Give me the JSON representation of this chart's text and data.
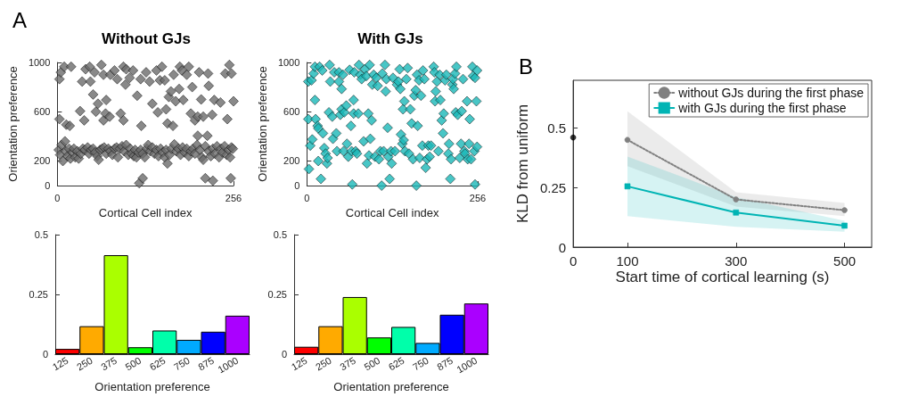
{
  "chart_data": [
    {
      "type": "scatter",
      "title": "Without GJs",
      "xlabel": "Cortical Cell index",
      "ylabel": "Orientation preference",
      "annotations": [
        "A"
      ],
      "color": "#6b6b6b",
      "marker": "diamond",
      "xlim": [
        0,
        256
      ],
      "xticks": [
        0,
        256
      ],
      "ylim": [
        0,
        1000
      ],
      "yticks": [
        0,
        200,
        600,
        1000
      ],
      "x": [
        3,
        5,
        10,
        20,
        3,
        13,
        18,
        33,
        36,
        39,
        41,
        47,
        48,
        54,
        52,
        59,
        56,
        64,
        67,
        71,
        67,
        70,
        76,
        77,
        83,
        87,
        92,
        96,
        96,
        100,
        99,
        105,
        110,
        116,
        121,
        122,
        129,
        134,
        138,
        144,
        146,
        149,
        152,
        156,
        158,
        160,
        162,
        165,
        168,
        169,
        172,
        178,
        177,
        181,
        183,
        188,
        191,
        194,
        196,
        200,
        204,
        206,
        209,
        212,
        219,
        220,
        225,
        228,
        237,
        244,
        247,
        250,
        253,
        256,
        119,
        124,
        215,
        226,
        252,
        2,
        4,
        6,
        8,
        11,
        12,
        15,
        17,
        19,
        22,
        24,
        26,
        29,
        31,
        34,
        37,
        40,
        44,
        46,
        49,
        52,
        55,
        58,
        60,
        62,
        65,
        68,
        71,
        74,
        77,
        80,
        83,
        86,
        88,
        91,
        94,
        97,
        100,
        103,
        106,
        108,
        111,
        113,
        115,
        118,
        121,
        124,
        127,
        130,
        132,
        135,
        138,
        141,
        144,
        147,
        150,
        153,
        156,
        158,
        160,
        163,
        166,
        170,
        173,
        176,
        179,
        182,
        185,
        188,
        191,
        194,
        197,
        200,
        203,
        204,
        207,
        210,
        212,
        215,
        218,
        220,
        223,
        226,
        229,
        232,
        235,
        238,
        240,
        243,
        246,
        249,
        251,
        253,
        255
      ],
      "values": [
        865,
        920,
        965,
        965,
        540,
        495,
        485,
        605,
        845,
        530,
        945,
        965,
        845,
        920,
        740,
        665,
        600,
        980,
        900,
        695,
        530,
        585,
        560,
        900,
        935,
        865,
        585,
        530,
        965,
        945,
        820,
        875,
        935,
        730,
        865,
        485,
        920,
        845,
        665,
        935,
        595,
        855,
        965,
        855,
        620,
        505,
        720,
        765,
        485,
        900,
        685,
        965,
        785,
        935,
        695,
        900,
        965,
        585,
        800,
        530,
        560,
        920,
        700,
        560,
        910,
        810,
        575,
        695,
        675,
        910,
        540,
        980,
        910,
        685,
        20,
        60,
        60,
        40,
        60,
        290,
        250,
        330,
        200,
        360,
        280,
        240,
        300,
        220,
        270,
        300,
        230,
        280,
        220,
        260,
        300,
        290,
        310,
        260,
        290,
        300,
        270,
        240,
        210,
        290,
        300,
        310,
        260,
        300,
        280,
        250,
        300,
        310,
        230,
        300,
        320,
        280,
        330,
        250,
        300,
        260,
        240,
        290,
        230,
        270,
        290,
        260,
        230,
        300,
        330,
        280,
        310,
        260,
        290,
        240,
        300,
        270,
        230,
        290,
        180,
        250,
        300,
        335,
        280,
        300,
        250,
        310,
        270,
        300,
        240,
        280,
        300,
        260,
        330,
        405,
        290,
        230,
        210,
        320,
        405,
        280,
        240,
        300,
        260,
        320,
        230,
        300,
        270,
        320,
        250,
        290,
        230,
        310,
        300
      ]
    },
    {
      "type": "scatter",
      "title": "With GJs",
      "xlabel": "Cortical Cell index",
      "ylabel": "Orientation preference",
      "color": "#1ab8b8",
      "marker": "diamond",
      "xlim": [
        0,
        256
      ],
      "xticks": [
        0,
        256
      ],
      "ylim": [
        0,
        1000
      ],
      "yticks": [
        0,
        200,
        600,
        1000
      ],
      "x": [
        2,
        2,
        3,
        5,
        7,
        8,
        10,
        12,
        12,
        13,
        16,
        17,
        17,
        19,
        21,
        23,
        24,
        26,
        28,
        30,
        31,
        33,
        35,
        34,
        38,
        39,
        44,
        41,
        45,
        48,
        48,
        50,
        52,
        52,
        54,
        56,
        55,
        59,
        60,
        62,
        64,
        66,
        67,
        68,
        70,
        70,
        71,
        73,
        75,
        77,
        78,
        80,
        82,
        85,
        87,
        89,
        90,
        92,
        93,
        94,
        95,
        97,
        98,
        100,
        102,
        104,
        106,
        108,
        110,
        112,
        113,
        115,
        117,
        118,
        119,
        121,
        122,
        124,
        126,
        127,
        129,
        132,
        135,
        137,
        139,
        140,
        141,
        143,
        144,
        146,
        145,
        147,
        149,
        151,
        153,
        155,
        157,
        159,
        161,
        163,
        164,
        165,
        166,
        168,
        169,
        171,
        173,
        174,
        176,
        178,
        180,
        182,
        184,
        186,
        190,
        191,
        192,
        193,
        195,
        197,
        199,
        200,
        202,
        204,
        205,
        207,
        209,
        212,
        213,
        215,
        216,
        218,
        219,
        220,
        222,
        223,
        224,
        226,
        229,
        231,
        232,
        234,
        236,
        237,
        240,
        241,
        243,
        244,
        246,
        248,
        249,
        251,
        252,
        252,
        254,
        255,
        255
      ],
      "values": [
        845,
        540,
        135,
        325,
        855,
        375,
        910,
        965,
        695,
        540,
        485,
        465,
        200,
        965,
        55,
        935,
        425,
        305,
        260,
        180,
        225,
        595,
        845,
        980,
        560,
        380,
        425,
        920,
        280,
        920,
        845,
        575,
        785,
        620,
        900,
        595,
        280,
        650,
        340,
        235,
        940,
        485,
        280,
        10,
        695,
        585,
        920,
        280,
        260,
        585,
        980,
        900,
        865,
        360,
        945,
        890,
        180,
        585,
        245,
        980,
        380,
        530,
        820,
        900,
        235,
        875,
        810,
        215,
        280,
        0,
        910,
        280,
        980,
        765,
        865,
        470,
        235,
        55,
        280,
        180,
        875,
        280,
        820,
        845,
        945,
        785,
        415,
        340,
        620,
        685,
        370,
        280,
        865,
        955,
        260,
        620,
        505,
        215,
        730,
        775,
        0,
        900,
        485,
        855,
        225,
        730,
        325,
        935,
        865,
        145,
        215,
        325,
        235,
        325,
        965,
        920,
        685,
        765,
        845,
        280,
        900,
        695,
        530,
        425,
        585,
        855,
        900,
        260,
        340,
        55,
        215,
        820,
        865,
        785,
        910,
        595,
        965,
        575,
        225,
        340,
        605,
        865,
        280,
        260,
        685,
        215,
        340,
        540,
        215,
        965,
        890,
        280,
        875,
        10,
        685,
        315,
        935
      ]
    },
    {
      "type": "bar",
      "xlabel": "Orientation preference",
      "categories": [
        "125",
        "250",
        "375",
        "500",
        "625",
        "750",
        "875",
        "1000"
      ],
      "values": [
        0.022,
        0.117,
        0.414,
        0.029,
        0.099,
        0.06,
        0.094,
        0.161
      ],
      "colors": [
        "#ff0000",
        "#ffaa00",
        "#aaff00",
        "#00ff00",
        "#00ffaa",
        "#00aaff",
        "#0000ff",
        "#aa00ff"
      ],
      "ylim": [
        0,
        0.5
      ],
      "yticks": [
        0,
        0.25,
        0.5
      ]
    },
    {
      "type": "bar",
      "xlabel": "Orientation preference",
      "categories": [
        "125",
        "250",
        "375",
        "500",
        "625",
        "750",
        "875",
        "1000"
      ],
      "values": [
        0.031,
        0.117,
        0.239,
        0.07,
        0.114,
        0.047,
        0.165,
        0.212
      ],
      "colors": [
        "#ff0000",
        "#ffaa00",
        "#aaff00",
        "#00ff00",
        "#00ffaa",
        "#00aaff",
        "#0000ff",
        "#aa00ff"
      ],
      "ylim": [
        0,
        0.5
      ],
      "yticks": [
        0,
        0.25,
        0.5
      ]
    },
    {
      "type": "line",
      "xlabel": "Start time of cortical learning (s)",
      "ylabel": "KLD from uniform",
      "annotations": [
        "B"
      ],
      "legend": "top right",
      "xlim": [
        0,
        550
      ],
      "xticks": [
        0,
        100,
        300,
        500
      ],
      "ylim": [
        0,
        0.7
      ],
      "yticks": [
        0,
        0.25,
        0.5
      ],
      "series": [
        {
          "name": "without GJs during the first phase",
          "color": "#808080",
          "marker": "circle",
          "line_style": "dotted",
          "x": [
            100,
            300,
            500
          ],
          "values": [
            0.45,
            0.2,
            0.155
          ],
          "lower": [
            0.34,
            0.17,
            0.13
          ],
          "upper": [
            0.57,
            0.23,
            0.185
          ]
        },
        {
          "name": "with GJs during the first phase",
          "color": "#00b4b4",
          "marker": "square",
          "line_style": "solid",
          "x": [
            100,
            300,
            500
          ],
          "values": [
            0.255,
            0.145,
            0.09
          ],
          "lower": [
            0.13,
            0.085,
            0.065
          ],
          "upper": [
            0.38,
            0.21,
            0.11
          ]
        },
        {
          "type": "scatter",
          "color": "#000000",
          "marker": "circle",
          "x": [
            0
          ],
          "values": [
            0.46
          ]
        }
      ]
    }
  ]
}
